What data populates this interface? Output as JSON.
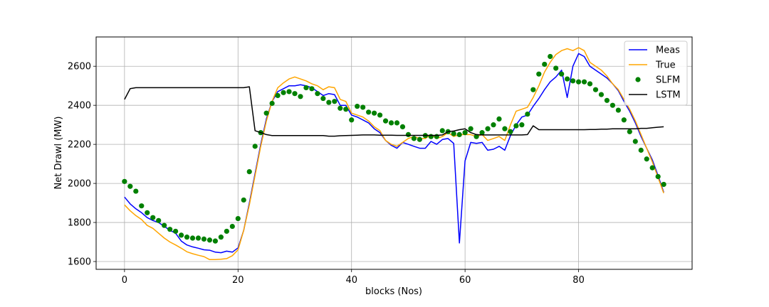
{
  "chart_data": {
    "type": "line",
    "title": "",
    "xlabel": "blocks (Nos)",
    "ylabel": "Net Drawl (MW)",
    "xlim": [
      -5,
      100
    ],
    "ylim": [
      1560,
      2750
    ],
    "xticks": [
      0,
      20,
      40,
      60,
      80
    ],
    "yticks": [
      1600,
      1800,
      2000,
      2200,
      2400,
      2600
    ],
    "grid": true,
    "legend_position": "top-right",
    "x": [
      0,
      1,
      2,
      3,
      4,
      5,
      6,
      7,
      8,
      9,
      10,
      11,
      12,
      13,
      14,
      15,
      16,
      17,
      18,
      19,
      20,
      21,
      22,
      23,
      24,
      25,
      26,
      27,
      28,
      29,
      30,
      31,
      32,
      33,
      34,
      35,
      36,
      37,
      38,
      39,
      40,
      41,
      42,
      43,
      44,
      45,
      46,
      47,
      48,
      49,
      50,
      51,
      52,
      53,
      54,
      55,
      56,
      57,
      58,
      59,
      60,
      61,
      62,
      63,
      64,
      65,
      66,
      67,
      68,
      69,
      70,
      71,
      72,
      73,
      74,
      75,
      76,
      77,
      78,
      79,
      80,
      81,
      82,
      83,
      84,
      85,
      86,
      87,
      88,
      89,
      90,
      91,
      92,
      93,
      94,
      95
    ],
    "series": [
      {
        "name": "Meas",
        "color": "#0000ff",
        "style": "line",
        "values": [
          1930,
          1895,
          1870,
          1850,
          1825,
          1810,
          1800,
          1780,
          1760,
          1745,
          1705,
          1685,
          1675,
          1668,
          1660,
          1658,
          1648,
          1645,
          1653,
          1648,
          1670,
          1760,
          1900,
          2050,
          2200,
          2330,
          2420,
          2470,
          2485,
          2500,
          2500,
          2505,
          2500,
          2490,
          2470,
          2450,
          2460,
          2455,
          2400,
          2400,
          2350,
          2340,
          2325,
          2310,
          2280,
          2260,
          2220,
          2195,
          2180,
          2210,
          2200,
          2190,
          2180,
          2180,
          2215,
          2200,
          2225,
          2230,
          2205,
          1695,
          2115,
          2210,
          2205,
          2210,
          2170,
          2175,
          2190,
          2170,
          2245,
          2300,
          2340,
          2350,
          2395,
          2435,
          2480,
          2520,
          2545,
          2580,
          2440,
          2600,
          2665,
          2650,
          2600,
          2580,
          2560,
          2540,
          2510,
          2475,
          2420,
          2370,
          2310,
          2240,
          2180,
          2120,
          2040,
          1955
        ]
      },
      {
        "name": "True",
        "color": "#ffa500",
        "style": "line",
        "values": [
          1890,
          1860,
          1835,
          1815,
          1785,
          1770,
          1745,
          1720,
          1700,
          1685,
          1668,
          1650,
          1640,
          1632,
          1625,
          1610,
          1610,
          1612,
          1615,
          1630,
          1660,
          1760,
          1890,
          2040,
          2190,
          2320,
          2420,
          2490,
          2515,
          2535,
          2545,
          2535,
          2525,
          2510,
          2500,
          2480,
          2495,
          2490,
          2430,
          2420,
          2360,
          2350,
          2340,
          2320,
          2290,
          2270,
          2220,
          2200,
          2190,
          2210,
          2230,
          2240,
          2230,
          2230,
          2250,
          2230,
          2240,
          2260,
          2240,
          2250,
          2250,
          2250,
          2240,
          2250,
          2220,
          2230,
          2240,
          2220,
          2300,
          2370,
          2380,
          2390,
          2440,
          2500,
          2570,
          2620,
          2660,
          2680,
          2690,
          2680,
          2695,
          2680,
          2620,
          2600,
          2580,
          2550,
          2510,
          2480,
          2430,
          2380,
          2320,
          2250,
          2180,
          2110,
          2030,
          1950
        ]
      },
      {
        "name": "SLFM",
        "color": "#008000",
        "style": "scatter",
        "values": [
          2010,
          1985,
          1960,
          1885,
          1850,
          1825,
          1810,
          1785,
          1765,
          1755,
          1735,
          1725,
          1720,
          1720,
          1715,
          1710,
          1705,
          1725,
          1755,
          1780,
          1820,
          1915,
          2060,
          2190,
          2260,
          2360,
          2410,
          2450,
          2465,
          2470,
          2460,
          2445,
          2490,
          2485,
          2460,
          2435,
          2415,
          2420,
          2385,
          2380,
          2325,
          2395,
          2390,
          2365,
          2360,
          2350,
          2320,
          2310,
          2310,
          2290,
          2250,
          2230,
          2225,
          2245,
          2240,
          2240,
          2270,
          2265,
          2255,
          2250,
          2260,
          2280,
          2240,
          2260,
          2280,
          2300,
          2330,
          2280,
          2265,
          2295,
          2300,
          2355,
          2480,
          2560,
          2610,
          2650,
          2590,
          2560,
          2535,
          2525,
          2520,
          2520,
          2510,
          2480,
          2455,
          2425,
          2400,
          2375,
          2325,
          2265,
          2215,
          2170,
          2125,
          2080,
          2035,
          1995
        ]
      },
      {
        "name": "LSTM",
        "color": "#000000",
        "style": "line",
        "values": [
          2430,
          2485,
          2490,
          2490,
          2490,
          2490,
          2490,
          2490,
          2490,
          2490,
          2490,
          2490,
          2490,
          2490,
          2490,
          2490,
          2490,
          2490,
          2490,
          2490,
          2490,
          2490,
          2495,
          2270,
          2260,
          2250,
          2245,
          2245,
          2245,
          2245,
          2245,
          2245,
          2245,
          2245,
          2245,
          2245,
          2242,
          2242,
          2244,
          2245,
          2246,
          2247,
          2248,
          2248,
          2248,
          2247,
          2247,
          2247,
          2246,
          2246,
          2246,
          2246,
          2246,
          2246,
          2246,
          2246,
          2248,
          2265,
          2268,
          2275,
          2280,
          2260,
          2250,
          2248,
          2248,
          2248,
          2248,
          2248,
          2248,
          2248,
          2248,
          2250,
          2295,
          2275,
          2275,
          2275,
          2275,
          2275,
          2275,
          2275,
          2275,
          2275,
          2276,
          2276,
          2278,
          2278,
          2280,
          2280,
          2280,
          2280,
          2280,
          2282,
          2282,
          2285,
          2288,
          2290
        ]
      }
    ]
  }
}
